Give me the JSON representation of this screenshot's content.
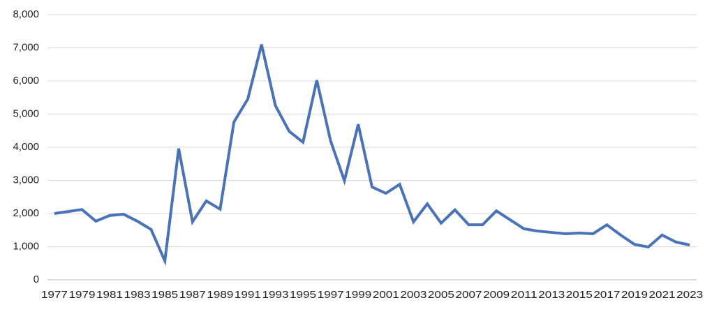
{
  "chart_data": {
    "type": "line",
    "categories": [
      "1977",
      null,
      "1979",
      null,
      "1981",
      null,
      "1983",
      null,
      "1985",
      null,
      "1987",
      null,
      "1989",
      null,
      "1991",
      null,
      "1993",
      null,
      "1995",
      null,
      "1997",
      null,
      "1999",
      null,
      "2001",
      null,
      "2003",
      null,
      "2005",
      null,
      "2007",
      null,
      "2009",
      null,
      "2011",
      null,
      "2013",
      null,
      "2015",
      null,
      "2017",
      null,
      "2019",
      null,
      "2021",
      null,
      "2023"
    ],
    "values": [
      2000,
      2060,
      2120,
      1770,
      1940,
      1980,
      1770,
      1520,
      570,
      3960,
      1750,
      2380,
      2130,
      4760,
      5450,
      7100,
      5260,
      4480,
      4150,
      6020,
      4190,
      2990,
      4690,
      2800,
      2610,
      2880,
      1750,
      2290,
      1710,
      2110,
      1660,
      1660,
      2080,
      1810,
      1540,
      1470,
      1430,
      1390,
      1410,
      1390,
      1660,
      1350,
      1070,
      990,
      1350,
      1140,
      1050
    ],
    "color": "#4a72b8",
    "ylim": [
      0,
      8000
    ],
    "yticks": [
      0,
      {
        "value": 1000,
        "label": "1,000"
      },
      {
        "value": 2000,
        "label": "2,000"
      },
      {
        "value": 3000,
        "label": "3,000"
      },
      {
        "value": 4000,
        "label": "4,000"
      },
      {
        "value": 5000,
        "label": "5,000"
      },
      {
        "value": 6000,
        "label": "6,000"
      },
      {
        "value": 7000,
        "label": "7,000"
      },
      {
        "value": 8000,
        "label": "8,000"
      }
    ],
    "grid": true
  }
}
